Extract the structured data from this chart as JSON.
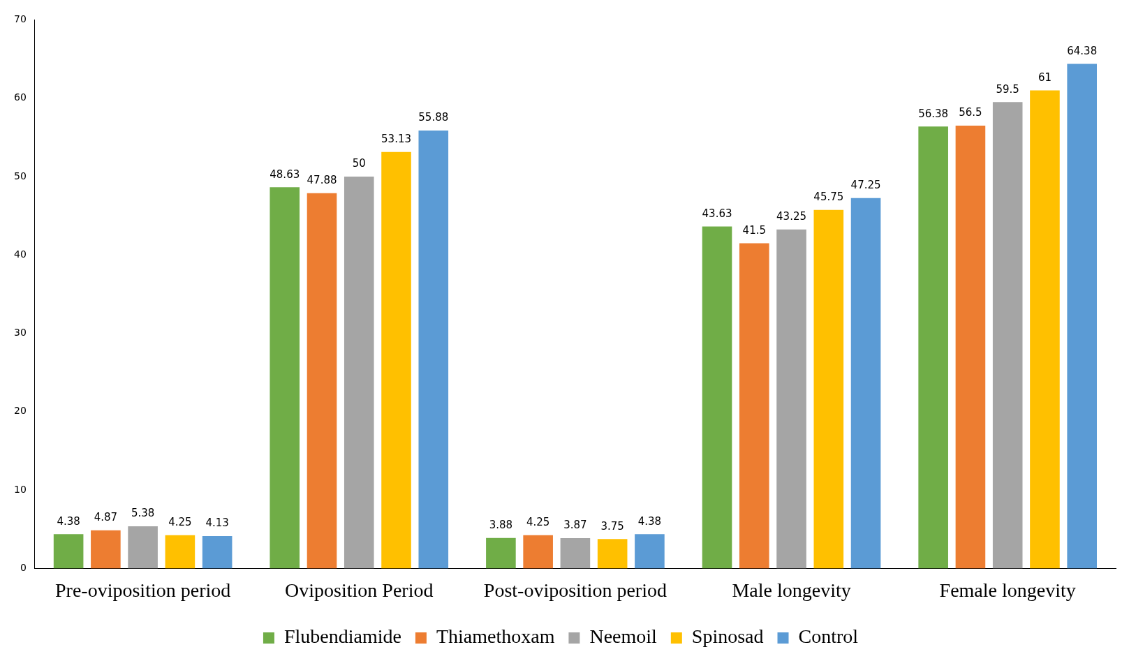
{
  "chart_data": {
    "type": "bar",
    "categories": [
      "Pre-oviposition period",
      "Oviposition Period",
      "Post-oviposition period",
      "Male longevity",
      "Female longevity"
    ],
    "series": [
      {
        "name": "Flubendiamide",
        "color": "#70ad47",
        "values": [
          4.38,
          48.63,
          3.88,
          43.63,
          56.38
        ]
      },
      {
        "name": "Thiamethoxam",
        "color": "#ed7d31",
        "values": [
          4.87,
          47.88,
          4.25,
          41.5,
          56.5
        ]
      },
      {
        "name": "Neemoil",
        "color": "#a5a5a5",
        "values": [
          5.38,
          50,
          3.87,
          43.25,
          59.5
        ]
      },
      {
        "name": "Spinosad",
        "color": "#ffc000",
        "values": [
          4.25,
          53.13,
          3.75,
          45.75,
          61
        ]
      },
      {
        "name": "Control",
        "color": "#5b9bd5",
        "values": [
          4.13,
          55.88,
          4.38,
          47.25,
          64.38
        ]
      }
    ],
    "ylim": [
      0,
      70
    ],
    "yticks": [
      0,
      10,
      20,
      30,
      40,
      50,
      60,
      70
    ],
    "grid": false,
    "legend": "bottom",
    "data_labels": true
  }
}
